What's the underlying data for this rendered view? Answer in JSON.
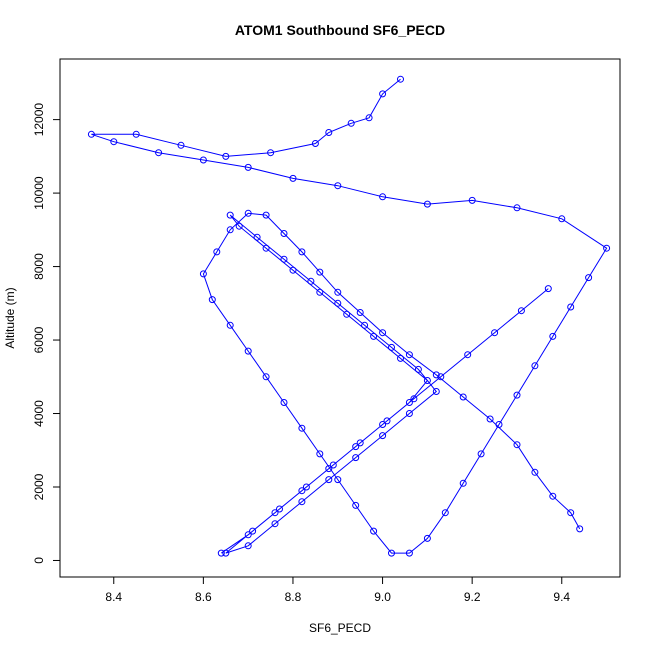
{
  "chart_data": {
    "type": "scatter",
    "title": "ATOM1 Southbound SF6_PECD",
    "xlabel": "SF6_PECD",
    "ylabel": "Altitude (m)",
    "xlim": [
      8.28,
      9.53
    ],
    "ylim": [
      -450,
      13650
    ],
    "x_ticks": [
      8.4,
      8.6,
      8.8,
      9.0,
      9.2,
      9.4
    ],
    "x_tick_labels": [
      "8.4",
      "8.6",
      "8.8",
      "9.0",
      "9.2",
      "9.4"
    ],
    "y_ticks": [
      0,
      2000,
      4000,
      6000,
      8000,
      10000,
      12000
    ],
    "y_tick_labels": [
      "0",
      "2000",
      "4000",
      "6000",
      "8000",
      "10000",
      "12000"
    ],
    "grid": false,
    "point_style": "open-circle-with-lines",
    "series": [
      {
        "color": "#0000ff",
        "x": [
          9.44,
          9.42,
          9.38,
          9.34,
          9.3,
          9.24,
          9.18,
          9.12,
          9.06,
          9.0,
          8.95,
          8.9,
          8.86,
          8.82,
          8.78,
          8.74,
          8.7,
          8.66,
          8.63,
          8.6,
          8.62,
          8.66,
          8.7,
          8.74,
          8.78,
          8.82,
          8.86,
          8.9,
          8.94,
          8.98,
          9.02,
          9.06,
          9.1,
          9.14,
          9.18,
          9.22,
          9.26,
          9.3,
          9.34,
          9.38,
          9.42,
          9.46,
          9.5,
          9.4,
          9.3,
          9.2,
          9.1,
          9.0,
          8.9,
          8.8,
          8.7,
          8.6,
          8.5,
          8.4,
          8.35,
          8.45,
          8.55,
          8.65,
          8.75,
          8.85,
          8.88,
          8.93,
          8.97,
          9.0,
          9.04
        ],
        "y": [
          860,
          1300,
          1750,
          2400,
          3150,
          3850,
          4450,
          5050,
          5600,
          6200,
          6750,
          7300,
          7850,
          8400,
          8900,
          9400,
          9450,
          9000,
          8400,
          7800,
          7100,
          6400,
          5700,
          5000,
          4300,
          3600,
          2900,
          2200,
          1500,
          800,
          200,
          200,
          600,
          1300,
          2100,
          2900,
          3700,
          4500,
          5300,
          6100,
          6900,
          7700,
          8500,
          9300,
          9600,
          9800,
          9700,
          9900,
          10200,
          10400,
          10700,
          10900,
          11100,
          11400,
          11600,
          11600,
          11300,
          11000,
          11100,
          11350,
          11650,
          11900,
          12050,
          12700,
          13100
        ]
      },
      {
        "color": "#0000ff",
        "x": [
          8.64,
          8.7,
          8.76,
          8.82,
          8.88,
          8.94,
          9.0,
          9.06,
          9.1,
          9.04,
          8.98,
          8.92,
          8.86,
          8.8,
          8.74,
          8.68,
          8.66,
          8.72,
          8.78,
          8.84,
          8.9,
          8.96,
          9.02,
          9.08,
          9.12,
          9.06,
          9.0,
          8.94,
          8.88,
          8.82,
          8.76,
          8.7,
          8.65,
          8.71,
          8.77,
          8.83,
          8.89,
          8.95,
          9.01,
          9.07,
          9.13,
          9.19,
          9.25,
          9.31,
          9.37
        ],
        "y": [
          200,
          700,
          1300,
          1900,
          2500,
          3100,
          3700,
          4300,
          4900,
          5500,
          6100,
          6700,
          7300,
          7900,
          8500,
          9100,
          9400,
          8800,
          8200,
          7600,
          7000,
          6400,
          5800,
          5200,
          4600,
          4000,
          3400,
          2800,
          2200,
          1600,
          1000,
          400,
          200,
          800,
          1400,
          2000,
          2600,
          3200,
          3800,
          4400,
          5000,
          5600,
          6200,
          6800,
          7400
        ]
      }
    ]
  }
}
